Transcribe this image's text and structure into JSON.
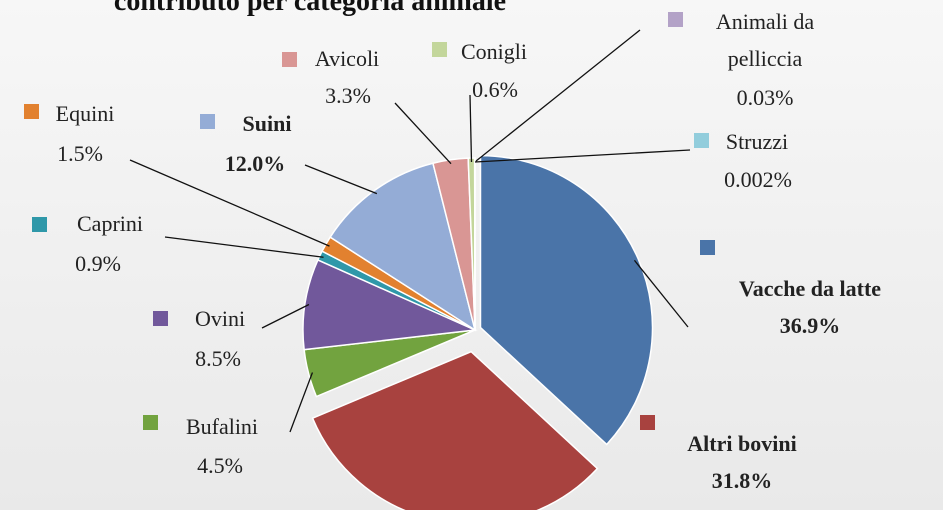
{
  "chart_data": {
    "type": "pie",
    "title": "contributo per categoria animale",
    "categories": [
      "Vacche da latte",
      "Altri bovini",
      "Bufalini",
      "Ovini",
      "Caprini",
      "Equini",
      "Suini",
      "Avicoli",
      "Conigli",
      "Animali da pelliccia",
      "Struzzi"
    ],
    "values": [
      36.9,
      31.8,
      4.5,
      8.5,
      0.9,
      1.5,
      12.0,
      3.3,
      0.6,
      0.03,
      0.002
    ],
    "value_labels": [
      "36.9%",
      "31.8%",
      "4.5%",
      "8.5%",
      "0.9%",
      "1.5%",
      "12.0%",
      "3.3%",
      "0.6%",
      "0.03%",
      "0.002%"
    ],
    "colors": [
      "#4a74a8",
      "#a8423f",
      "#72a33f",
      "#71589b",
      "#2f98a9",
      "#e2812f",
      "#94acd6",
      "#d99694",
      "#c3d69b",
      "#b3a2c7",
      "#92cddc"
    ]
  }
}
